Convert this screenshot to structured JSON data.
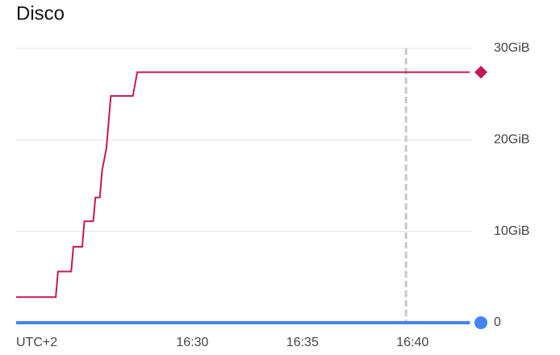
{
  "chart_data": {
    "type": "line",
    "title": "Disco",
    "xlabel": "UTC+2",
    "series": [
      {
        "color": "#c2185b",
        "x": [
          982.0,
          983.8,
          983.9,
          984.5,
          984.6,
          985.0,
          985.1,
          985.5,
          985.6,
          985.8,
          985.9,
          986.1,
          986.3,
          987.3,
          987.5,
          1002.6
        ],
        "values": [
          2.8,
          2.8,
          5.6,
          5.6,
          8.3,
          8.3,
          11.1,
          11.1,
          13.7,
          13.7,
          16.6,
          19.1,
          24.8,
          24.8,
          27.4,
          27.4
        ],
        "end_marker": "diamond"
      },
      {
        "color": "#4285f4",
        "x": [
          982.0,
          1002.6
        ],
        "values": [
          0,
          0
        ],
        "end_marker": "circle"
      }
    ],
    "xlim": [
      982,
      1002.7
    ],
    "xticks": [
      {
        "value": 990,
        "label": "16:30"
      },
      {
        "value": 995,
        "label": "16:35"
      },
      {
        "value": 1000,
        "label": "16:40"
      }
    ],
    "ylim": [
      0,
      30
    ],
    "yticks": [
      0,
      {
        "value": 10,
        "label": "10GiB"
      },
      {
        "value": 20,
        "label": "20GiB"
      },
      {
        "value": 30,
        "label": "30GiB"
      }
    ],
    "grid": true,
    "vline": 999.7
  }
}
